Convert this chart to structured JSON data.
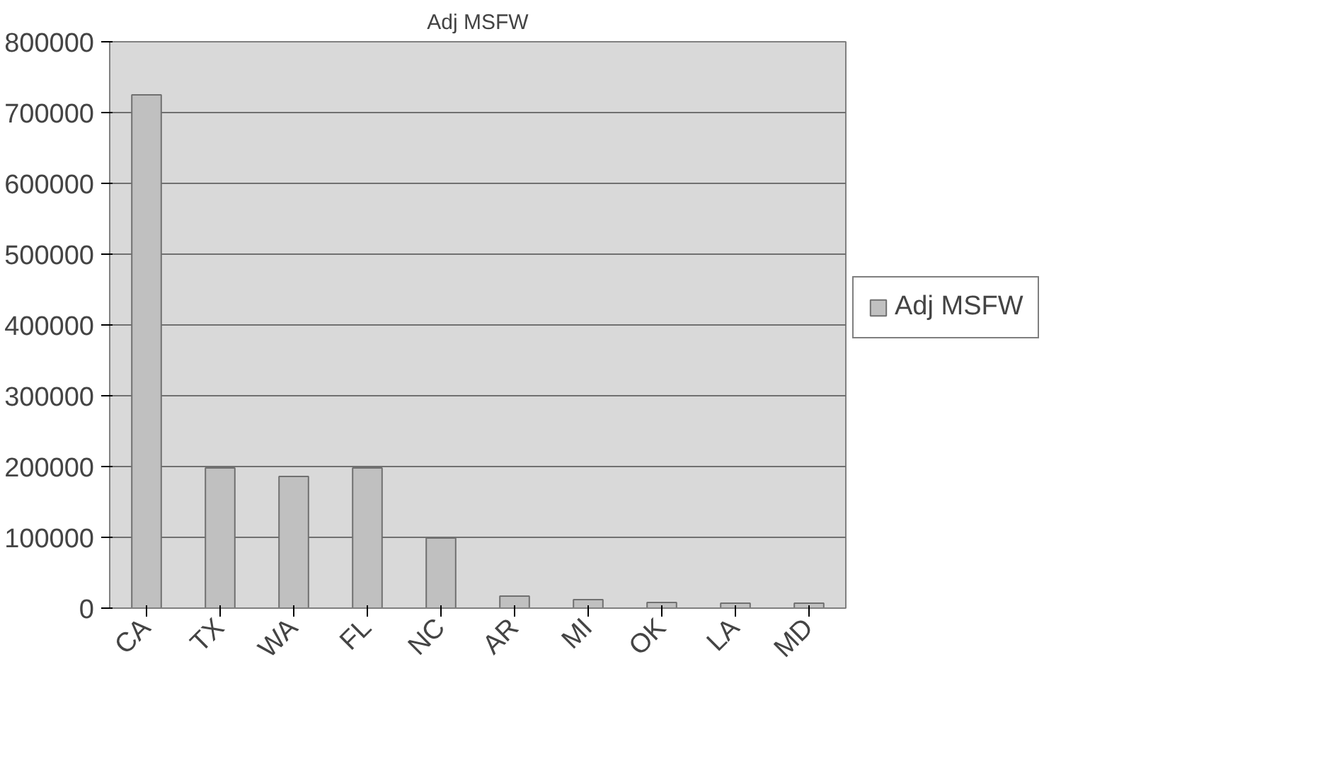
{
  "chart_data": {
    "type": "bar",
    "title": "Adj MSFW",
    "categories": [
      "CA",
      "TX",
      "WA",
      "FL",
      "NC",
      "AR",
      "MI",
      "OK",
      "LA",
      "MD"
    ],
    "series": [
      {
        "name": "Adj MSFW",
        "color": "#c0c0c0",
        "values": [
          725000,
          198000,
          186000,
          198000,
          99000,
          17000,
          12000,
          8000,
          7000,
          7000
        ]
      }
    ],
    "ylim": [
      0,
      800000
    ],
    "yticks": [
      0,
      100000,
      200000,
      300000,
      400000,
      500000,
      600000,
      700000,
      800000
    ],
    "grid": "y",
    "legend": "right"
  }
}
